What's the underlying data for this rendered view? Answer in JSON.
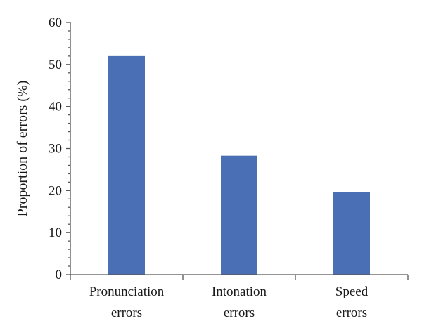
{
  "chart_data": {
    "type": "bar",
    "categories": [
      [
        "Pronunciation",
        "errors"
      ],
      [
        "Intonation",
        "errors"
      ],
      [
        "Speed",
        "errors"
      ]
    ],
    "values": [
      52,
      28.3,
      19.6
    ],
    "ylabel": "Proportion of errors (%)",
    "xlabel": "",
    "ylim": [
      0,
      60
    ],
    "yticks": [
      0,
      10,
      20,
      30,
      40,
      50,
      60
    ],
    "minor_ticks": true,
    "grid": false,
    "legend": "none",
    "bar_color": "#4a6fb5"
  }
}
